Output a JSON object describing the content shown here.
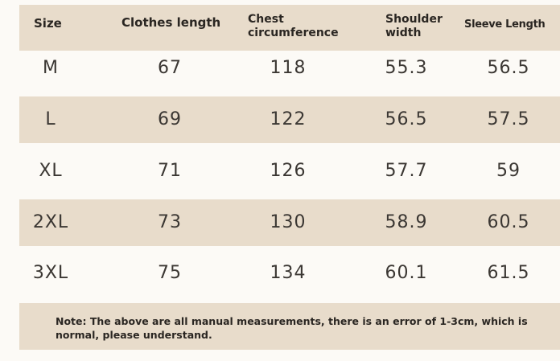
{
  "table": {
    "headers": {
      "size": "Size",
      "length": "Clothes length",
      "chest": "Chest circumference",
      "shoulder": "Shoulder width",
      "sleeve": "Sleeve Length"
    },
    "rows": [
      {
        "size": "M",
        "length": "67",
        "chest": "118",
        "shoulder": "55.3",
        "sleeve": "56.5"
      },
      {
        "size": "L",
        "length": "69",
        "chest": "122",
        "shoulder": "56.5",
        "sleeve": "57.5"
      },
      {
        "size": "XL",
        "length": "71",
        "chest": "126",
        "shoulder": "57.7",
        "sleeve": "59"
      },
      {
        "size": "2XL",
        "length": "73",
        "chest": "130",
        "shoulder": "58.9",
        "sleeve": "60.5"
      },
      {
        "size": "3XL",
        "length": "75",
        "chest": "134",
        "shoulder": "60.1",
        "sleeve": "61.5"
      }
    ]
  },
  "note": "Note: The above are all manual measurements, there is an error of 1-3cm, which is normal, please understand.",
  "colors": {
    "band": "#e8dccb",
    "background": "#fcfaf6",
    "text": "#3b3733"
  }
}
